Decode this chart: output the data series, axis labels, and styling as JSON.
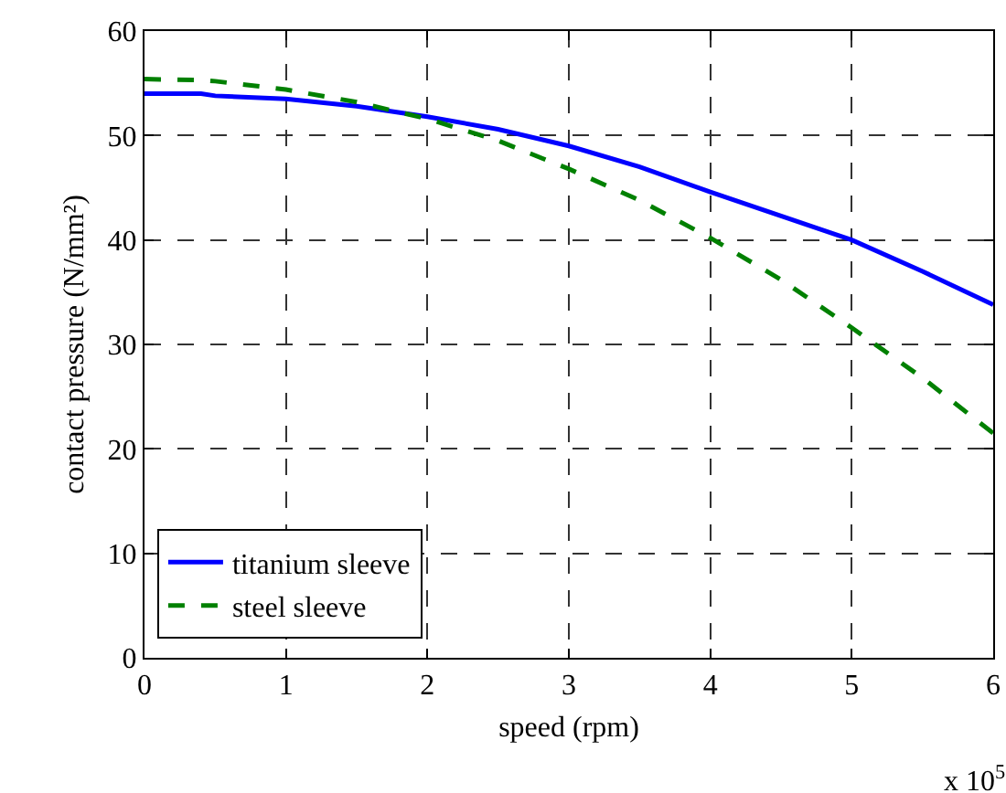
{
  "chart_data": {
    "type": "line",
    "xlabel": "speed (rpm)",
    "ylabel": "contact pressure (N/mm²)",
    "annotations": [
      "x 10$^{5}$"
    ],
    "x": [
      0,
      0.4,
      0.5,
      1,
      1.5,
      2,
      2.5,
      3,
      3.5,
      4,
      4.5,
      5,
      5.5,
      6
    ],
    "series": [
      {
        "name": "titanium sleeve",
        "color": "#0000ff",
        "line_style": "solid",
        "values": [
          54,
          54,
          53.8,
          53.5,
          52.8,
          51.8,
          50.6,
          49,
          47,
          44.6,
          42.3,
          40,
          37,
          33.8
        ]
      },
      {
        "name": "steel sleeve",
        "color": "#008000",
        "line_style": "dashed",
        "values": [
          55.4,
          55.3,
          55.2,
          54.4,
          53.2,
          51.6,
          49.5,
          46.8,
          43.8,
          40.2,
          36.2,
          31.6,
          26.8,
          21.5
        ]
      }
    ],
    "xlim": [
      0,
      6
    ],
    "xticks": [
      0,
      1,
      2,
      3,
      4,
      5,
      6
    ],
    "ylim": [
      0,
      60
    ],
    "yticks": [
      0,
      10,
      20,
      30,
      40,
      50,
      60
    ],
    "grid": true,
    "legend": "bottom left"
  }
}
